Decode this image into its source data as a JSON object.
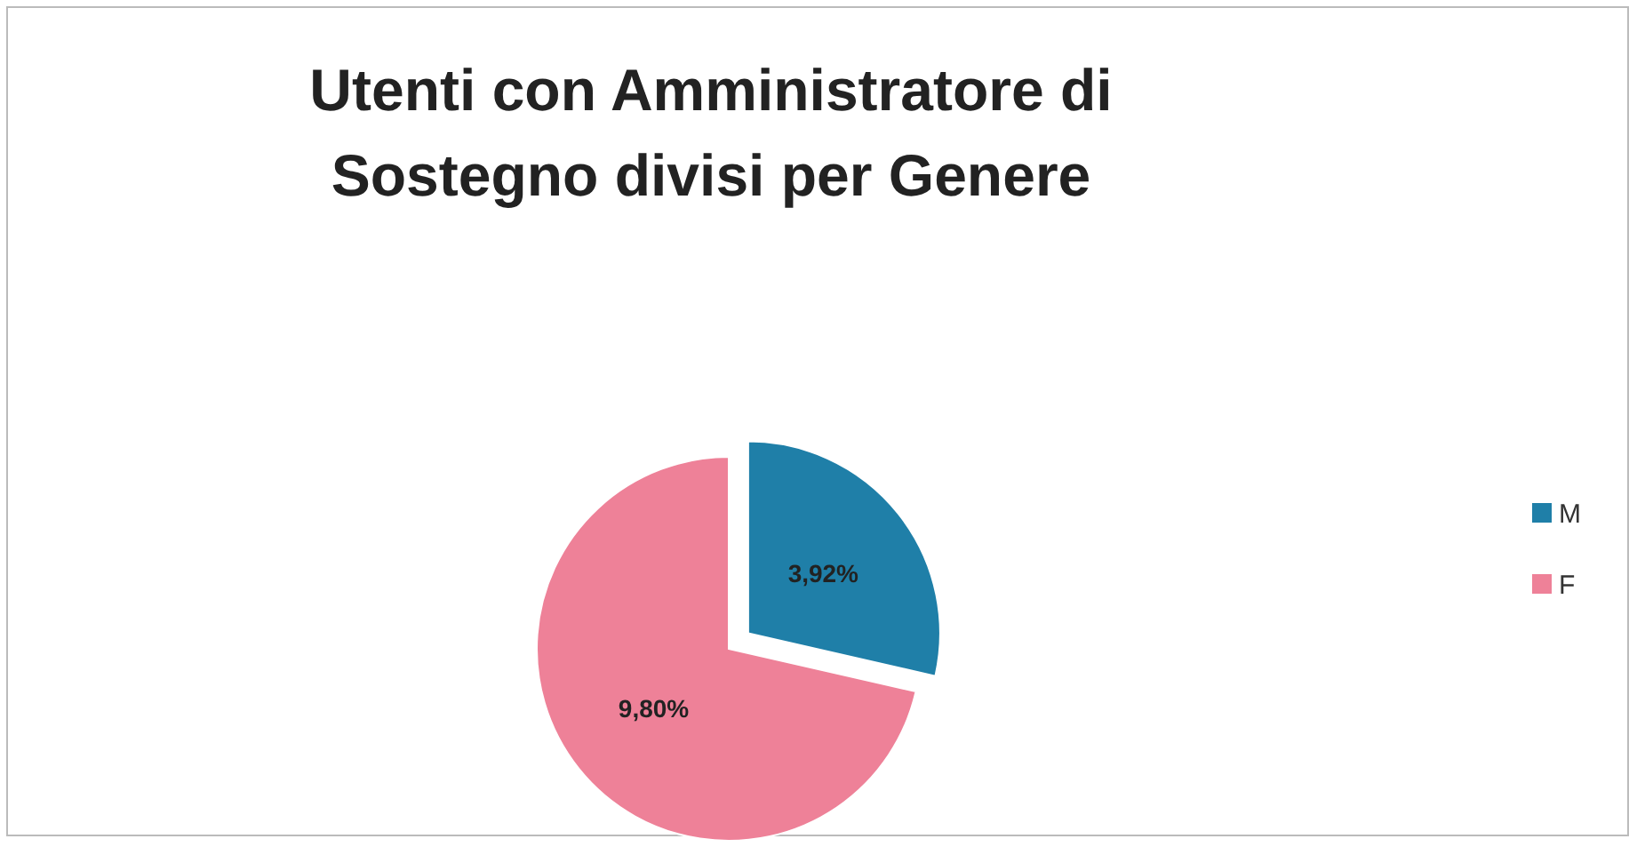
{
  "chart_data": {
    "type": "pie",
    "title": "Utenti con Amministratore di Sostegno divisi per Genere",
    "categories": [
      "M",
      "F"
    ],
    "values": [
      3.92,
      9.8
    ],
    "colors": [
      "#1f7fa8",
      "#ee8198"
    ],
    "value_labels": [
      "3,92%",
      "9,80%"
    ],
    "legend": "right"
  }
}
